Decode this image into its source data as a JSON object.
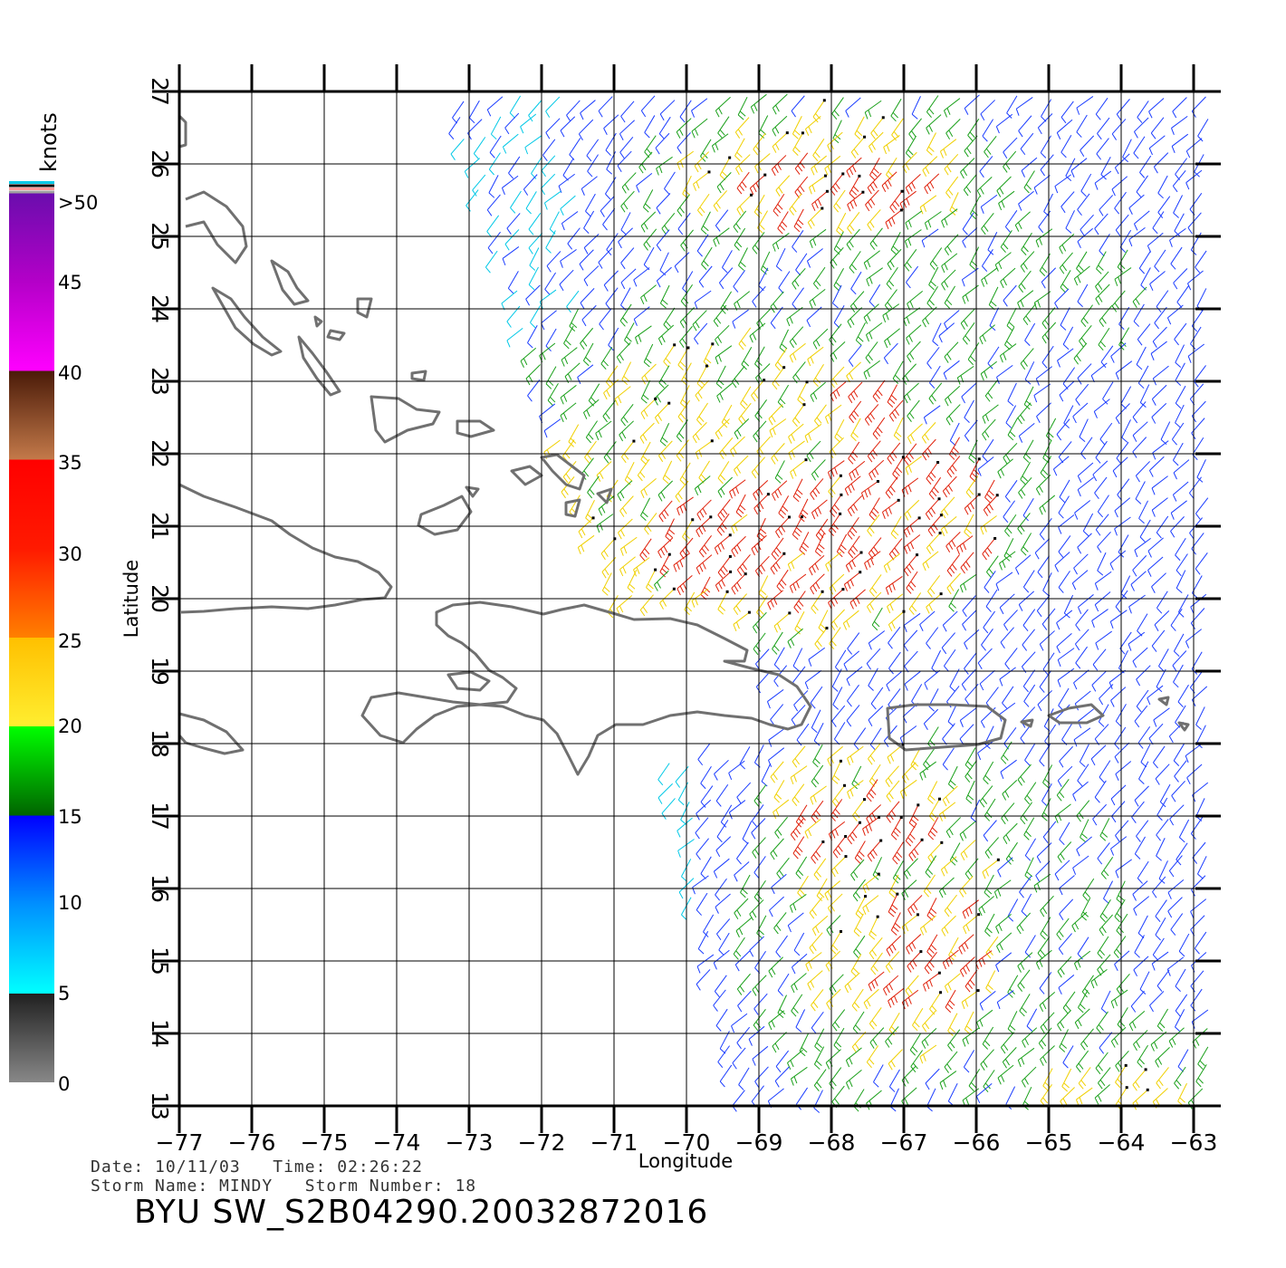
{
  "chart_data": {
    "type": "wind-vector-map",
    "xlabel": "Longitude",
    "ylabel": "Latitude",
    "xlim": [
      -77,
      -62.6
    ],
    "ylim": [
      13,
      27
    ],
    "x_ticks": [
      "−77",
      "−76",
      "−75",
      "−74",
      "−73",
      "−72",
      "−71",
      "−70",
      "−69",
      "−68",
      "−67",
      "−66",
      "−65",
      "−64",
      "−63"
    ],
    "y_ticks": [
      "13",
      "14",
      "15",
      "16",
      "17",
      "18",
      "19",
      "20",
      "21",
      "22",
      "23",
      "24",
      "25",
      "26",
      "27"
    ],
    "legend": {
      "unit": "knots",
      "labels": [
        ">50",
        "45",
        "40",
        "35",
        "30",
        "25",
        "20",
        "15",
        "10",
        "5",
        "0"
      ],
      "colors": [
        "#6a0dad",
        "#b400c8",
        "#ff00ff",
        "#5a2a10",
        "#c47a4a",
        "#ff0000",
        "#ff7700",
        "#ffd400",
        "#00e000",
        "#006400",
        "#0000ff",
        "#00c8ff",
        "#000000",
        "#888888"
      ]
    },
    "wind_colors": {
      "blue": "#1a3cff",
      "cyan": "#00c8e6",
      "green": "#1aa01a",
      "yellow": "#f0d000",
      "red": "#e0200a",
      "black": "#000000"
    }
  },
  "footer": {
    "date_line": "Date: 10/11/03   Time: 02:26:22",
    "storm_line": "Storm Name: MINDY   Storm Number: 18",
    "title": "BYU SW_S2B04290.20032872016"
  }
}
